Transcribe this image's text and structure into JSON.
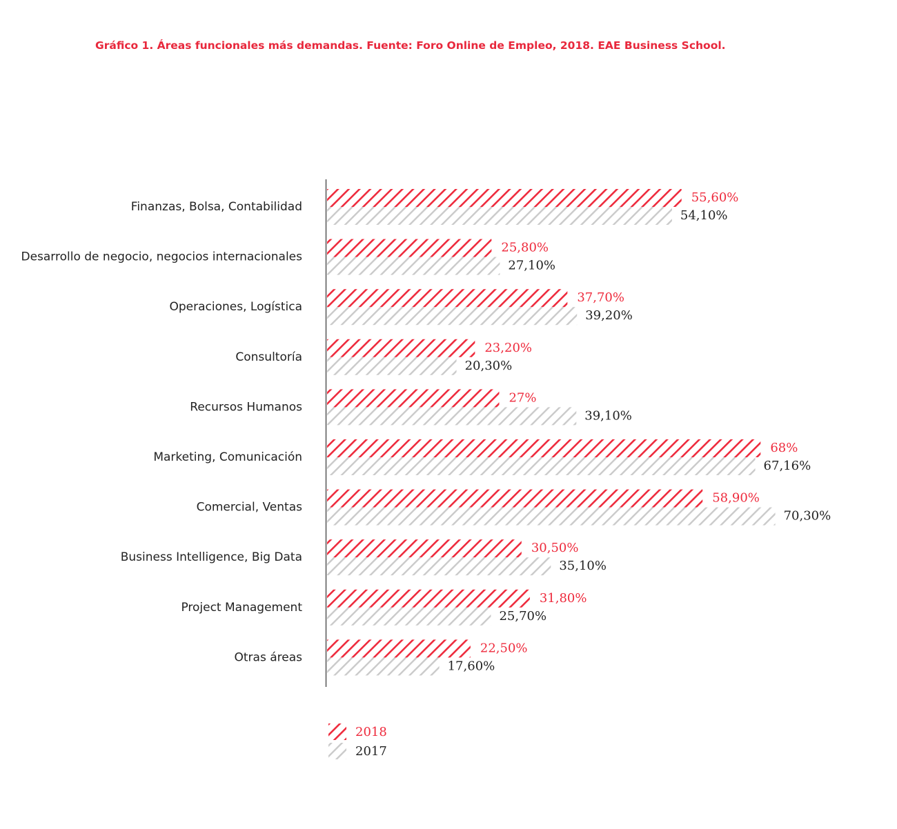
{
  "title": "Gráfico 1. Áreas funcionales más demandas. Fuente: Foro Online de Empleo, 2018. EAE Business School.",
  "colors": {
    "2018": "#ee2a3c",
    "2017": "#c8c8c8",
    "label_2017": "#222222"
  },
  "chart_data": {
    "type": "bar",
    "orientation": "horizontal",
    "fill_pattern": "diagonal-hatch",
    "title": "Gráfico 1. Áreas funcionales más demandas. Fuente: Foro Online de Empleo, 2018. EAE Business School.",
    "categories": [
      "Finanzas, Bolsa, Contabilidad",
      "Desarrollo de negocio, negocios internacionales",
      "Operaciones, Logística",
      "Consultoría",
      "Recursos Humanos",
      "Marketing, Comunicación",
      "Comercial, Ventas",
      "Business Intelligence, Big Data",
      "Project Management",
      "Otras áreas"
    ],
    "series": [
      {
        "name": "2018",
        "values": [
          55.6,
          25.8,
          37.7,
          23.2,
          27,
          68,
          58.9,
          30.5,
          31.8,
          22.5
        ],
        "labels": [
          "55,60%",
          "25,80%",
          "37,70%",
          "23,20%",
          "27%",
          "68%",
          "58,90%",
          "30,50%",
          "31,80%",
          "22,50%"
        ]
      },
      {
        "name": "2017",
        "values": [
          54.1,
          27.1,
          39.2,
          20.3,
          39.1,
          67.16,
          70.3,
          35.1,
          25.7,
          17.6
        ],
        "labels": [
          "54,10%",
          "27,10%",
          "39,20%",
          "20,30%",
          "39,10%",
          "67,16%",
          "70,30%",
          "35,10%",
          "25,70%",
          "17,60%"
        ]
      }
    ],
    "xlim": [
      0,
      72
    ],
    "grid": false,
    "legend": "bottom"
  }
}
